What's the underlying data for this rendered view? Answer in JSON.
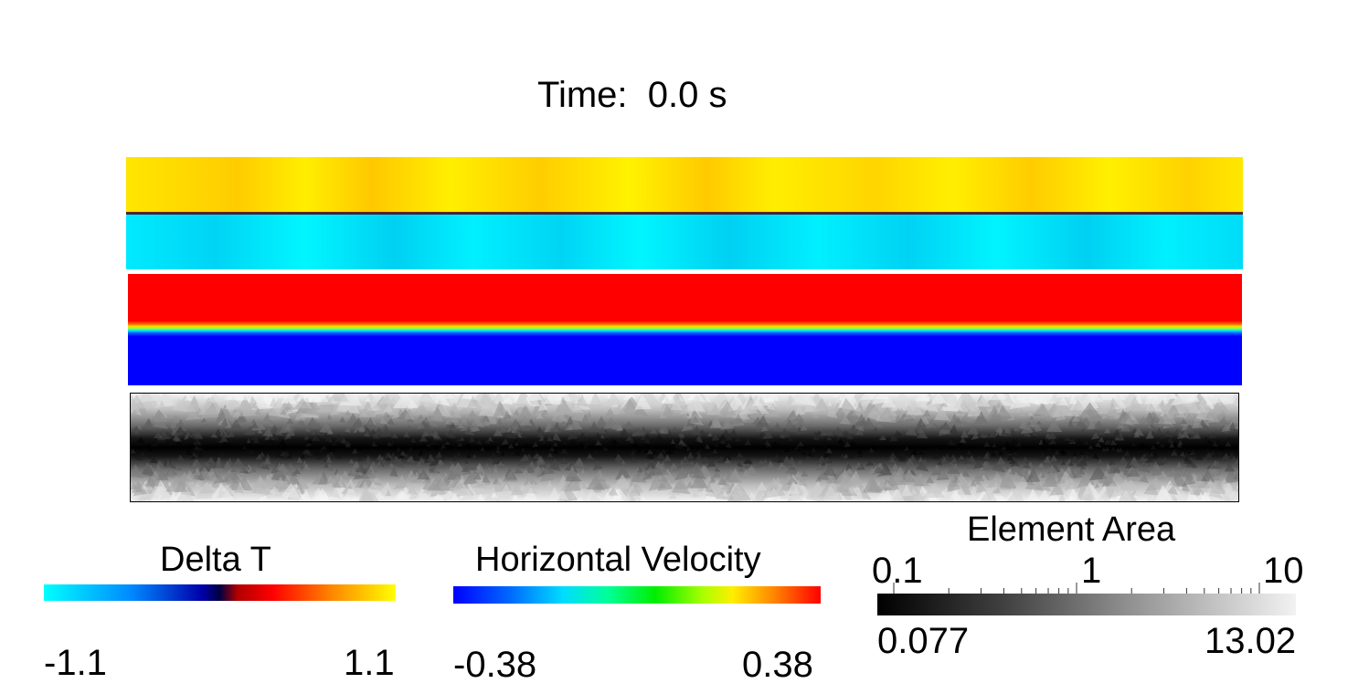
{
  "time_label": "Time:  0.0 s",
  "legends": {
    "delta_t": {
      "title": "Delta T",
      "min": "-1.1",
      "max": "1.1"
    },
    "velocity": {
      "title": "Horizontal Velocity",
      "min": "-0.38",
      "max": "0.38"
    },
    "area": {
      "title": "Element Area",
      "tick_labels": [
        "0.1",
        "1",
        "10"
      ],
      "min": "0.077",
      "max": "13.02",
      "scale": "log"
    }
  },
  "colors": {
    "delta_t_colormap": [
      "#00ffff",
      "#0000aa",
      "#000040",
      "#ff0000",
      "#ffff00"
    ],
    "velocity_colormap": [
      "#0000ff",
      "#00ddff",
      "#00ee00",
      "#ffee00",
      "#ff0000"
    ],
    "area_colormap": [
      "#000000",
      "#f2f2f2"
    ]
  }
}
